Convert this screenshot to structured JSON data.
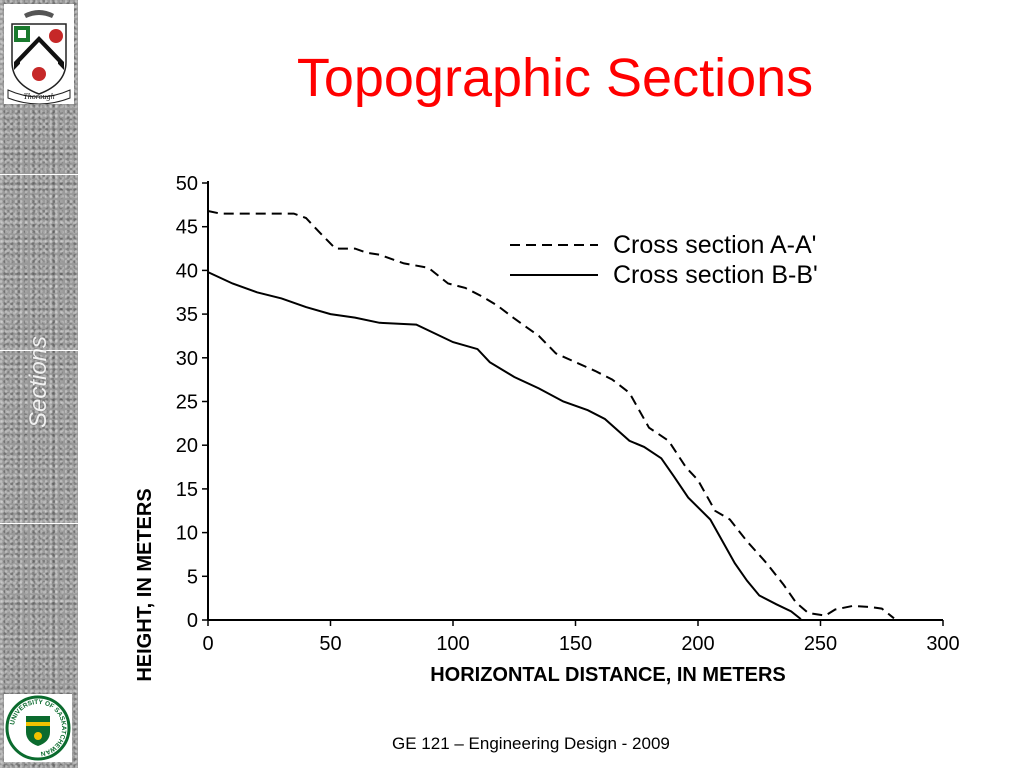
{
  "slide": {
    "title": "Topographic Sections",
    "footer": "GE 121 – Engineering Design - 2009",
    "side_label": "Sections",
    "crest_motto": "Thorough",
    "logo_text": "UNIVERSITY OF SASKATCHEWAN",
    "title_color": "#ff0000"
  },
  "chart_data": {
    "type": "line",
    "xlabel": "HORIZONTAL DISTANCE, IN METERS",
    "ylabel": "HEIGHT, IN METERS",
    "xlim": [
      0,
      300
    ],
    "ylim": [
      0,
      50
    ],
    "xticks": [
      0,
      50,
      100,
      150,
      200,
      250,
      300
    ],
    "yticks": [
      0,
      5,
      10,
      15,
      20,
      25,
      30,
      35,
      40,
      45,
      50
    ],
    "grid": false,
    "legend_position": "top-right",
    "series": [
      {
        "name": "Cross section A-A'",
        "style": "dashed",
        "color": "#000000",
        "points": [
          [
            0,
            46.8
          ],
          [
            5,
            46.5
          ],
          [
            35,
            46.5
          ],
          [
            40,
            46.0
          ],
          [
            45,
            44.5
          ],
          [
            52,
            42.5
          ],
          [
            60,
            42.5
          ],
          [
            65,
            42.0
          ],
          [
            70,
            41.8
          ],
          [
            80,
            40.8
          ],
          [
            90,
            40.3
          ],
          [
            98,
            38.5
          ],
          [
            105,
            38.0
          ],
          [
            112,
            37.0
          ],
          [
            118,
            36.0
          ],
          [
            125,
            34.5
          ],
          [
            135,
            32.5
          ],
          [
            142,
            30.5
          ],
          [
            150,
            29.5
          ],
          [
            158,
            28.5
          ],
          [
            165,
            27.5
          ],
          [
            172,
            26.0
          ],
          [
            180,
            22.0
          ],
          [
            188,
            20.5
          ],
          [
            195,
            17.5
          ],
          [
            200,
            16.0
          ],
          [
            207,
            12.5
          ],
          [
            213,
            11.5
          ],
          [
            220,
            9.0
          ],
          [
            228,
            6.5
          ],
          [
            235,
            4.0
          ],
          [
            240,
            2.0
          ],
          [
            245,
            0.8
          ],
          [
            252,
            0.5
          ],
          [
            256,
            1.2
          ],
          [
            263,
            1.6
          ],
          [
            270,
            1.5
          ],
          [
            275,
            1.3
          ],
          [
            280,
            0.2
          ]
        ]
      },
      {
        "name": "Cross section B-B'",
        "style": "solid",
        "color": "#000000",
        "points": [
          [
            0,
            39.8
          ],
          [
            10,
            38.5
          ],
          [
            20,
            37.5
          ],
          [
            30,
            36.8
          ],
          [
            40,
            35.8
          ],
          [
            50,
            35.0
          ],
          [
            60,
            34.6
          ],
          [
            70,
            34.0
          ],
          [
            85,
            33.8
          ],
          [
            100,
            31.8
          ],
          [
            110,
            31.0
          ],
          [
            115,
            29.5
          ],
          [
            125,
            27.8
          ],
          [
            135,
            26.5
          ],
          [
            145,
            25.0
          ],
          [
            155,
            24.0
          ],
          [
            162,
            23.0
          ],
          [
            172,
            20.5
          ],
          [
            178,
            19.8
          ],
          [
            185,
            18.5
          ],
          [
            190,
            16.5
          ],
          [
            196,
            14.0
          ],
          [
            205,
            11.5
          ],
          [
            210,
            9.0
          ],
          [
            215,
            6.5
          ],
          [
            220,
            4.5
          ],
          [
            225,
            2.8
          ],
          [
            232,
            1.8
          ],
          [
            238,
            1.0
          ],
          [
            242,
            0.1
          ]
        ]
      }
    ]
  }
}
